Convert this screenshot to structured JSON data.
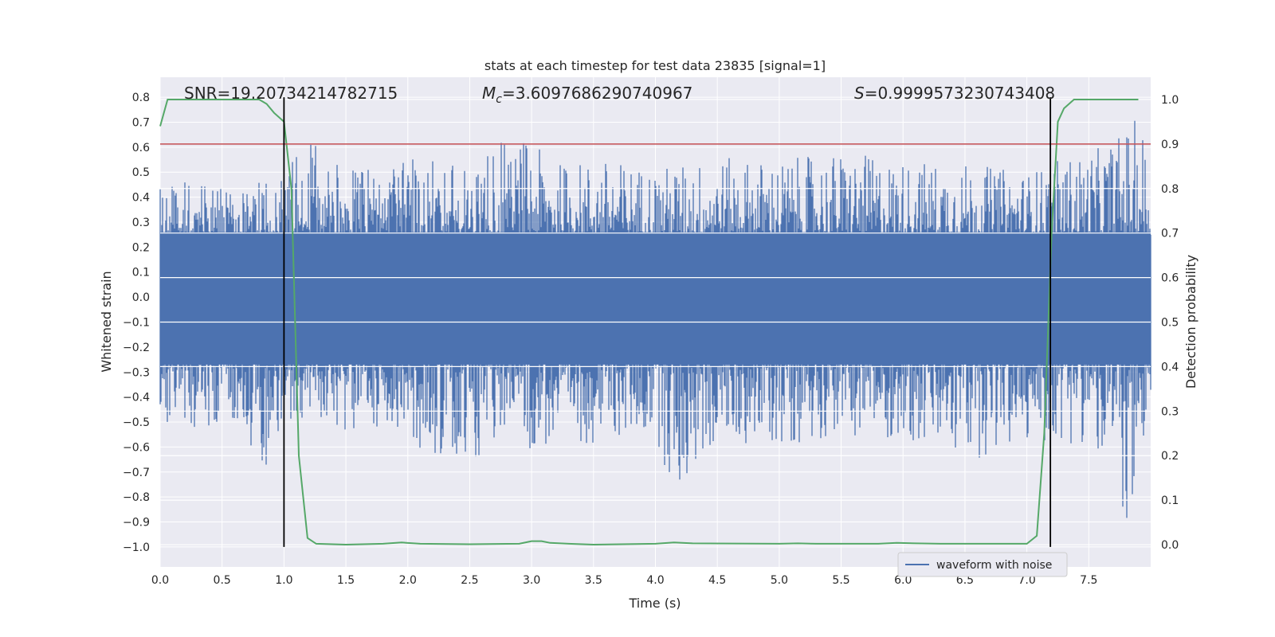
{
  "chart_data": {
    "type": "line",
    "title": "stats at each timestep for test data 23835 [signal=1]",
    "xlabel": "Time (s)",
    "ylabel_left": "Whitened strain",
    "ylabel_right": "Detection probability",
    "xlim": [
      0.0,
      8.0
    ],
    "ylim_left": [
      -1.08,
      0.88
    ],
    "ylim_right": [
      -0.05,
      1.05
    ],
    "x_ticks": [
      0.0,
      0.5,
      1.0,
      1.5,
      2.0,
      2.5,
      3.0,
      3.5,
      4.0,
      4.5,
      5.0,
      5.5,
      6.0,
      6.5,
      7.0,
      7.5
    ],
    "x_tick_labels": [
      "0.0",
      "0.5",
      "1.0",
      "1.5",
      "2.0",
      "2.5",
      "3.0",
      "3.5",
      "4.0",
      "4.5",
      "5.0",
      "5.5",
      "6.0",
      "6.5",
      "7.0",
      "7.5"
    ],
    "y_ticks_left": [
      0.8,
      0.7,
      0.6,
      0.5,
      0.4,
      0.3,
      0.2,
      0.1,
      0.0,
      -0.1,
      -0.2,
      -0.3,
      -0.4,
      -0.5,
      -0.6,
      -0.7,
      -0.8,
      -0.9,
      -1.0
    ],
    "y_tick_labels_left": [
      "0.8",
      "0.7",
      "0.6",
      "0.5",
      "0.4",
      "0.3",
      "0.2",
      "0.1",
      "0.0",
      "−0.1",
      "−0.2",
      "−0.3",
      "−0.4",
      "−0.5",
      "−0.6",
      "−0.7",
      "−0.8",
      "−0.9",
      "−1.0"
    ],
    "y_ticks_right": [
      1.0,
      0.9,
      0.8,
      0.7,
      0.6,
      0.5,
      0.4,
      0.3,
      0.2,
      0.1,
      0.0
    ],
    "y_tick_labels_right": [
      "1.0",
      "0.9",
      "0.8",
      "0.7",
      "0.6",
      "0.5",
      "0.4",
      "0.3",
      "0.2",
      "0.1",
      "0.0"
    ],
    "grid": true,
    "annotations": {
      "snr": "SNR=19.20734214782715",
      "mc_symbol": "M",
      "mc_sub": "c",
      "mc_value": "=3.6097686290740967",
      "s_symbol": "S",
      "s_value": "=0.9999573230743408"
    },
    "legend": {
      "placement": "lower-center-right",
      "entries": [
        "waveform with noise"
      ]
    },
    "series": [
      {
        "name": "waveform with noise",
        "axis": "left",
        "color": "#4c72b0",
        "envelope_upper": [
          [
            0.0,
            0.45
          ],
          [
            0.3,
            0.47
          ],
          [
            0.6,
            0.44
          ],
          [
            0.9,
            0.5
          ],
          [
            1.0,
            0.5
          ],
          [
            1.1,
            0.58
          ],
          [
            1.25,
            0.62
          ],
          [
            1.5,
            0.52
          ],
          [
            2.0,
            0.56
          ],
          [
            2.5,
            0.55
          ],
          [
            2.85,
            0.67
          ],
          [
            3.2,
            0.54
          ],
          [
            3.6,
            0.55
          ],
          [
            4.0,
            0.52
          ],
          [
            4.5,
            0.56
          ],
          [
            5.0,
            0.55
          ],
          [
            5.5,
            0.58
          ],
          [
            6.0,
            0.55
          ],
          [
            6.5,
            0.54
          ],
          [
            7.0,
            0.5
          ],
          [
            7.3,
            0.56
          ],
          [
            7.6,
            0.6
          ],
          [
            7.9,
            0.72
          ],
          [
            8.0,
            0.6
          ]
        ],
        "envelope_lower": [
          [
            0.0,
            -0.5
          ],
          [
            0.3,
            -0.55
          ],
          [
            0.6,
            -0.5
          ],
          [
            0.85,
            -0.68
          ],
          [
            1.0,
            -0.48
          ],
          [
            1.5,
            -0.55
          ],
          [
            2.0,
            -0.58
          ],
          [
            2.3,
            -0.66
          ],
          [
            2.8,
            -0.62
          ],
          [
            3.3,
            -0.6
          ],
          [
            4.0,
            -0.55
          ],
          [
            4.15,
            -0.82
          ],
          [
            4.5,
            -0.58
          ],
          [
            5.0,
            -0.6
          ],
          [
            5.5,
            -0.55
          ],
          [
            6.0,
            -0.58
          ],
          [
            6.5,
            -0.66
          ],
          [
            7.0,
            -0.6
          ],
          [
            7.5,
            -0.58
          ],
          [
            7.88,
            -0.98
          ],
          [
            8.0,
            -0.78
          ]
        ]
      },
      {
        "name": "",
        "axis": "right",
        "color": "#55a868",
        "x": [
          0.0,
          0.06,
          0.2,
          0.5,
          0.8,
          0.86,
          0.92,
          1.0,
          1.06,
          1.12,
          1.19,
          1.26,
          1.5,
          1.8,
          1.95,
          2.1,
          2.5,
          2.9,
          3.0,
          3.08,
          3.15,
          3.3,
          3.5,
          4.0,
          4.15,
          4.3,
          5.0,
          5.15,
          5.3,
          5.8,
          5.95,
          6.1,
          6.3,
          7.0,
          7.08,
          7.14,
          7.2,
          7.25,
          7.3,
          7.38,
          7.5,
          7.9
        ],
        "y": [
          0.94,
          1.0,
          1.0,
          1.0,
          1.0,
          0.99,
          0.97,
          0.95,
          0.8,
          0.2,
          0.015,
          0.002,
          0.0,
          0.002,
          0.005,
          0.002,
          0.001,
          0.002,
          0.008,
          0.008,
          0.004,
          0.002,
          0.0,
          0.002,
          0.005,
          0.003,
          0.002,
          0.003,
          0.002,
          0.002,
          0.004,
          0.003,
          0.002,
          0.002,
          0.02,
          0.25,
          0.7,
          0.95,
          0.98,
          1.0,
          1.0,
          1.0
        ]
      }
    ],
    "threshold_line": {
      "axis": "right",
      "value": 0.9,
      "color": "#c44e52"
    },
    "vertical_lines": {
      "color": "#000000",
      "x": [
        1.0,
        7.19
      ]
    },
    "colors": {
      "background": "#eaeaf2",
      "grid": "#ffffff"
    }
  }
}
